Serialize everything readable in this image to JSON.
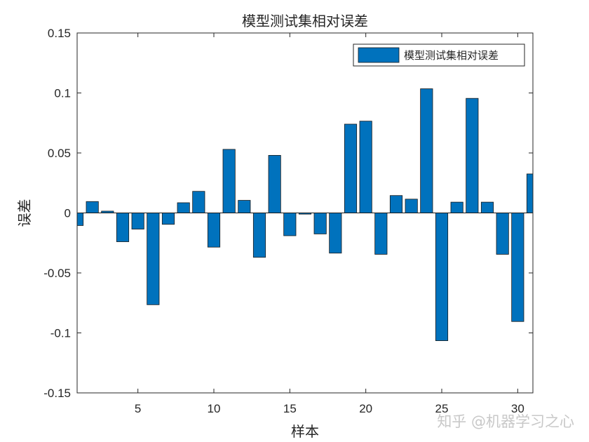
{
  "chart_data": {
    "type": "bar",
    "title": "模型测试集相对误差",
    "xlabel": "样本",
    "ylabel": "误差",
    "legend": "模型测试集相对误差",
    "legend_position": "top-right",
    "xlim": [
      1,
      31
    ],
    "ylim": [
      -0.15,
      0.15
    ],
    "xticks": [
      5,
      10,
      15,
      20,
      25,
      30
    ],
    "xtick_labels": [
      "5",
      "10",
      "15",
      "20",
      "25",
      "30"
    ],
    "yticks": [
      -0.15,
      -0.1,
      -0.05,
      0,
      0.05,
      0.1,
      0.15
    ],
    "ytick_labels": [
      "-0.15",
      "-0.1",
      "-0.05",
      "0",
      "0.05",
      "0.1",
      "0.15"
    ],
    "bar_color": "#0072bd",
    "x": [
      1,
      2,
      3,
      4,
      5,
      6,
      7,
      8,
      9,
      10,
      11,
      12,
      13,
      14,
      15,
      16,
      17,
      18,
      19,
      20,
      21,
      22,
      23,
      24,
      25,
      26,
      27,
      28,
      29,
      30,
      31
    ],
    "values": [
      -0.0105,
      0.0095,
      0.0015,
      -0.024,
      -0.0135,
      -0.0765,
      -0.0095,
      0.0085,
      0.018,
      -0.0285,
      0.053,
      0.0105,
      -0.037,
      0.048,
      -0.019,
      -0.001,
      -0.0175,
      -0.0335,
      0.074,
      0.0765,
      -0.0345,
      0.0145,
      0.0115,
      0.1035,
      -0.1065,
      0.009,
      0.0955,
      0.009,
      -0.0345,
      -0.0905,
      0.0325
    ]
  },
  "watermark": "知乎 @机器学习之心"
}
